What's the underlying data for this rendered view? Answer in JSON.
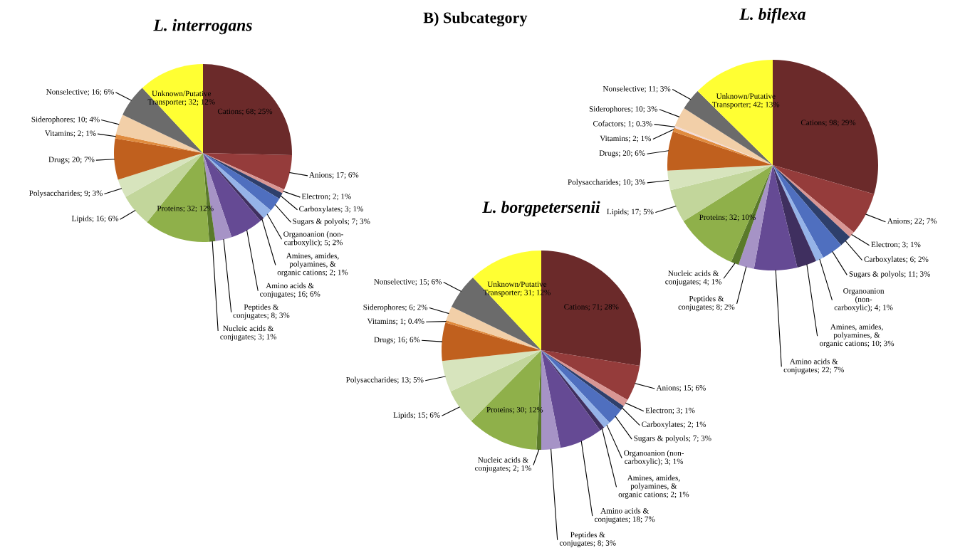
{
  "chart_data": [
    {
      "type": "pie",
      "title": "L. interrogans",
      "categories": [
        "Cations",
        "Anions",
        "Electron",
        "Carboxylates",
        "Sugars & polyols",
        "Organoanion (non-\ncarboxylic)",
        "Amines, amides,\npolyamines, &\norganic cations",
        "Amino acids &\nconjugates",
        "Peptides &\nconjugates",
        "Nucleic acids &\nconjugates",
        "Proteins",
        "Lipids",
        "Polysaccharides",
        "Drugs",
        "Vitamins",
        "Siderophores",
        "Nonselective",
        "Unknown/Putative\nTransporter"
      ],
      "values": [
        68,
        17,
        2,
        3,
        7,
        5,
        2,
        16,
        8,
        3,
        32,
        16,
        9,
        20,
        2,
        10,
        16,
        32
      ],
      "value_labels": [
        "68; 25%",
        "17; 6%",
        "2; 1%",
        "3; 1%",
        "7; 3%",
        "5; 2%",
        "2; 1%",
        "16; 6%",
        "8; 3%",
        "3; 1%",
        "32; 12%",
        "16; 6%",
        "9; 3%",
        "20; 7%",
        "2; 1%",
        "10; 4%",
        "16; 6%",
        "32; 12%"
      ],
      "colors": [
        "#6b2a2a",
        "#953c3b",
        "#d99694",
        "#2e3f6b",
        "#4f6fbf",
        "#95b3e8",
        "#3f2f5f",
        "#654a94",
        "#a693c6",
        "#5a7a2a",
        "#8fb04a",
        "#c2d69b",
        "#d7e4bd",
        "#c0601e",
        "#e08b3e",
        "#f2cfa8",
        "#6b6b6b",
        "#ffff33"
      ]
    },
    {
      "type": "pie",
      "title": "L. borgpetersenii",
      "annotations": [
        "B) Subcategory"
      ],
      "categories": [
        "Cations",
        "Anions",
        "Electron",
        "Carboxylates",
        "Sugars & polyols",
        "Organoanion (non-\ncarboxylic)",
        "Amines, amides,\npolyamines, &\norganic cations",
        "Amino acids &\nconjugates",
        "Peptides &\nconjugates",
        "Nucleic acids &\nconjugates",
        "Proteins",
        "Lipids",
        "Polysaccharides",
        "Drugs",
        "Vitamins",
        "Siderophores",
        "Nonselective",
        "Unknown/Putative\nTransporter"
      ],
      "values": [
        71,
        15,
        3,
        2,
        7,
        3,
        2,
        18,
        8,
        2,
        30,
        15,
        13,
        16,
        1,
        6,
        15,
        31
      ],
      "value_labels": [
        "71; 28%",
        "15; 6%",
        "3; 1%",
        "2; 1%",
        "7; 3%",
        "3; 1%",
        "2; 1%",
        "18; 7%",
        "8; 3%",
        "2; 1%",
        "30; 12%",
        "15; 6%",
        "13; 5%",
        "16; 6%",
        "1; 0.4%",
        "6; 2%",
        "15; 6%",
        "31; 12%"
      ],
      "colors": [
        "#6b2a2a",
        "#953c3b",
        "#d99694",
        "#2e3f6b",
        "#4f6fbf",
        "#95b3e8",
        "#3f2f5f",
        "#654a94",
        "#a693c6",
        "#5a7a2a",
        "#8fb04a",
        "#c2d69b",
        "#d7e4bd",
        "#c0601e",
        "#e08b3e",
        "#f2cfa8",
        "#6b6b6b",
        "#ffff33"
      ]
    },
    {
      "type": "pie",
      "title": "L. biflexa",
      "categories": [
        "Cations",
        "Anions",
        "Electron",
        "Carboxylates",
        "Sugars & polyols",
        "Organoanion\n(non-\ncarboxylic)",
        "Amines, amides,\npolyamines, &\norganic cations",
        "Amino acids &\nconjugates",
        "Peptides &\nconjugates",
        "Nucleic acids &\nconjugates",
        "Proteins",
        "Lipids",
        "Polysaccharides",
        "Drugs",
        "Vitamins",
        "Cofactors",
        "Siderophores",
        "Nonselective",
        "Unknown/Putative\nTransporter"
      ],
      "values": [
        98,
        22,
        3,
        6,
        11,
        4,
        10,
        22,
        8,
        4,
        32,
        17,
        10,
        20,
        2,
        1,
        10,
        11,
        42
      ],
      "value_labels": [
        "98; 29%",
        "22; 7%",
        "3; 1%",
        "6; 2%",
        "11; 3%",
        "4; 1%",
        "10; 3%",
        "22; 7%",
        "8; 2%",
        "4; 1%",
        "32; 10%",
        "17; 5%",
        "10; 3%",
        "20; 6%",
        "2; 1%",
        "1; 0.3%",
        "10; 3%",
        "11; 3%",
        "42; 13%"
      ],
      "colors": [
        "#6b2a2a",
        "#953c3b",
        "#d99694",
        "#2e3f6b",
        "#4f6fbf",
        "#95b3e8",
        "#3f2f5f",
        "#654a94",
        "#a693c6",
        "#5a7a2a",
        "#8fb04a",
        "#c2d69b",
        "#d7e4bd",
        "#c0601e",
        "#e08b3e",
        "#f2dcdb",
        "#f2cfa8",
        "#6b6b6b",
        "#ffff33"
      ]
    }
  ]
}
